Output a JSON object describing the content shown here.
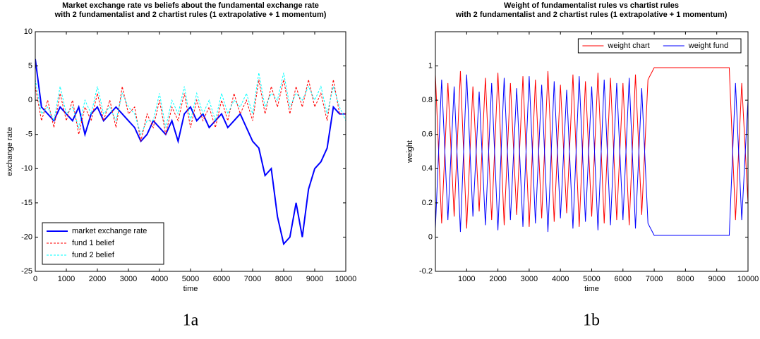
{
  "chart_data": [
    {
      "type": "line",
      "title": [
        "Market exchange rate vs beliefs about the fundamental exchange rate",
        "with 2 fundamentalist and 2 chartist rules (1 extrapolative + 1 momentum)"
      ],
      "xlabel": "time",
      "ylabel": "exchange rate",
      "caption": "1a",
      "x": [
        0,
        200,
        400,
        600,
        800,
        1000,
        1200,
        1400,
        1600,
        1800,
        2000,
        2200,
        2400,
        2600,
        2800,
        3000,
        3200,
        3400,
        3600,
        3800,
        4000,
        4200,
        4400,
        4600,
        4800,
        5000,
        5200,
        5400,
        5600,
        5800,
        6000,
        6200,
        6400,
        6600,
        6800,
        7000,
        7200,
        7400,
        7600,
        7800,
        8000,
        8200,
        8400,
        8600,
        8800,
        9000,
        9200,
        9400,
        9600,
        9800,
        10000
      ],
      "series": [
        {
          "name": "market exchange rate",
          "color": "#0000ff",
          "style": "solid",
          "width": 2,
          "values": [
            6,
            -1,
            -2,
            -3,
            -1,
            -2,
            -3,
            -1,
            -5,
            -2,
            -1,
            -3,
            -2,
            -1,
            -2,
            -3,
            -4,
            -6,
            -5,
            -3,
            -4,
            -5,
            -3,
            -6,
            -2,
            -1,
            -3,
            -2,
            -4,
            -3,
            -2,
            -4,
            -3,
            -2,
            -4,
            -6,
            -7,
            -11,
            -10,
            -17,
            -21,
            -20,
            -15,
            -20,
            -13,
            -10,
            -9,
            -7,
            -1,
            -2,
            -2
          ]
        },
        {
          "name": "fund 1 belief",
          "color": "#ff0000",
          "style": "dashed",
          "width": 1,
          "values": [
            2,
            -3,
            0,
            -4,
            1,
            -3,
            0,
            -5,
            -1,
            -3,
            1,
            -3,
            0,
            -4,
            2,
            -2,
            -1,
            -6,
            -2,
            -4,
            0,
            -5,
            -1,
            -3,
            1,
            -4,
            0,
            -3,
            -1,
            -4,
            0,
            -3,
            1,
            -2,
            0,
            -3,
            3,
            -2,
            2,
            -1,
            3,
            -2,
            2,
            -1,
            3,
            -1,
            1,
            -3,
            3,
            -2,
            -2
          ]
        },
        {
          "name": "fund 2 belief",
          "color": "#00ffff",
          "style": "dashed",
          "width": 1,
          "values": [
            3,
            -2,
            -1,
            -3,
            2,
            -2,
            -1,
            -4,
            0,
            -2,
            2,
            -2,
            -1,
            -3,
            1,
            -1,
            -2,
            -5,
            -3,
            -3,
            1,
            -4,
            0,
            -2,
            2,
            -3,
            1,
            -2,
            0,
            -3,
            1,
            -2,
            0,
            -1,
            1,
            -2,
            4,
            -1,
            1,
            0,
            4,
            -1,
            1,
            0,
            2,
            0,
            2,
            -2,
            2,
            -1,
            -3
          ]
        }
      ],
      "xlim": [
        0,
        10000
      ],
      "xticks": [
        0,
        1000,
        2000,
        3000,
        4000,
        5000,
        6000,
        7000,
        8000,
        9000,
        10000
      ],
      "ylim": [
        -25,
        10
      ],
      "yticks": [
        -25,
        -20,
        -15,
        -10,
        -5,
        0,
        5,
        10
      ],
      "legend": "lower left",
      "legend_orientation": "vertical"
    },
    {
      "type": "line",
      "title": [
        "Weight of fundamentalist rules vs chartist rules",
        "with 2 fundamentalist and 2 chartist rules (1 extrapolative + 1 momentum)"
      ],
      "xlabel": "time",
      "ylabel": "weight",
      "caption": "1b",
      "x": [
        0,
        200,
        400,
        600,
        800,
        1000,
        1200,
        1400,
        1600,
        1800,
        2000,
        2200,
        2400,
        2600,
        2800,
        3000,
        3200,
        3400,
        3600,
        3800,
        4000,
        4200,
        4400,
        4600,
        4800,
        5000,
        5200,
        5400,
        5600,
        5800,
        6000,
        6200,
        6400,
        6600,
        6800,
        7000,
        7200,
        7400,
        7600,
        7800,
        8000,
        8200,
        8400,
        8600,
        8800,
        9000,
        9200,
        9400,
        9600,
        9800,
        10000
      ],
      "series": [
        {
          "name": "weight chart",
          "color": "#ff0000",
          "style": "solid",
          "width": 1,
          "values": [
            0.95,
            0.08,
            0.9,
            0.12,
            0.97,
            0.05,
            0.88,
            0.15,
            0.93,
            0.1,
            0.96,
            0.07,
            0.9,
            0.13,
            0.94,
            0.06,
            0.92,
            0.11,
            0.97,
            0.09,
            0.89,
            0.14,
            0.95,
            0.06,
            0.91,
            0.12,
            0.96,
            0.08,
            0.93,
            0.1,
            0.9,
            0.07,
            0.95,
            0.13,
            0.92,
            0.99,
            0.99,
            0.99,
            0.99,
            0.99,
            0.99,
            0.99,
            0.99,
            0.99,
            0.99,
            0.99,
            0.99,
            0.99,
            0.1,
            0.9,
            0.2
          ]
        },
        {
          "name": "weight fund",
          "color": "#0000ff",
          "style": "solid",
          "width": 1,
          "values": [
            0.05,
            0.92,
            0.1,
            0.88,
            0.03,
            0.95,
            0.12,
            0.85,
            0.07,
            0.9,
            0.04,
            0.93,
            0.1,
            0.87,
            0.06,
            0.94,
            0.08,
            0.89,
            0.03,
            0.91,
            0.11,
            0.86,
            0.05,
            0.94,
            0.09,
            0.88,
            0.04,
            0.92,
            0.07,
            0.9,
            0.1,
            0.93,
            0.05,
            0.87,
            0.08,
            0.01,
            0.01,
            0.01,
            0.01,
            0.01,
            0.01,
            0.01,
            0.01,
            0.01,
            0.01,
            0.01,
            0.01,
            0.01,
            0.9,
            0.1,
            0.8
          ]
        }
      ],
      "xlim": [
        0,
        10000
      ],
      "xticks": [
        1000,
        2000,
        3000,
        4000,
        5000,
        6000,
        7000,
        8000,
        9000,
        10000
      ],
      "ylim": [
        -0.2,
        1.2
      ],
      "yticks": [
        -0.2,
        0,
        0.2,
        0.4,
        0.6,
        0.8,
        1
      ],
      "legend": "upper right",
      "legend_orientation": "horizontal"
    }
  ]
}
